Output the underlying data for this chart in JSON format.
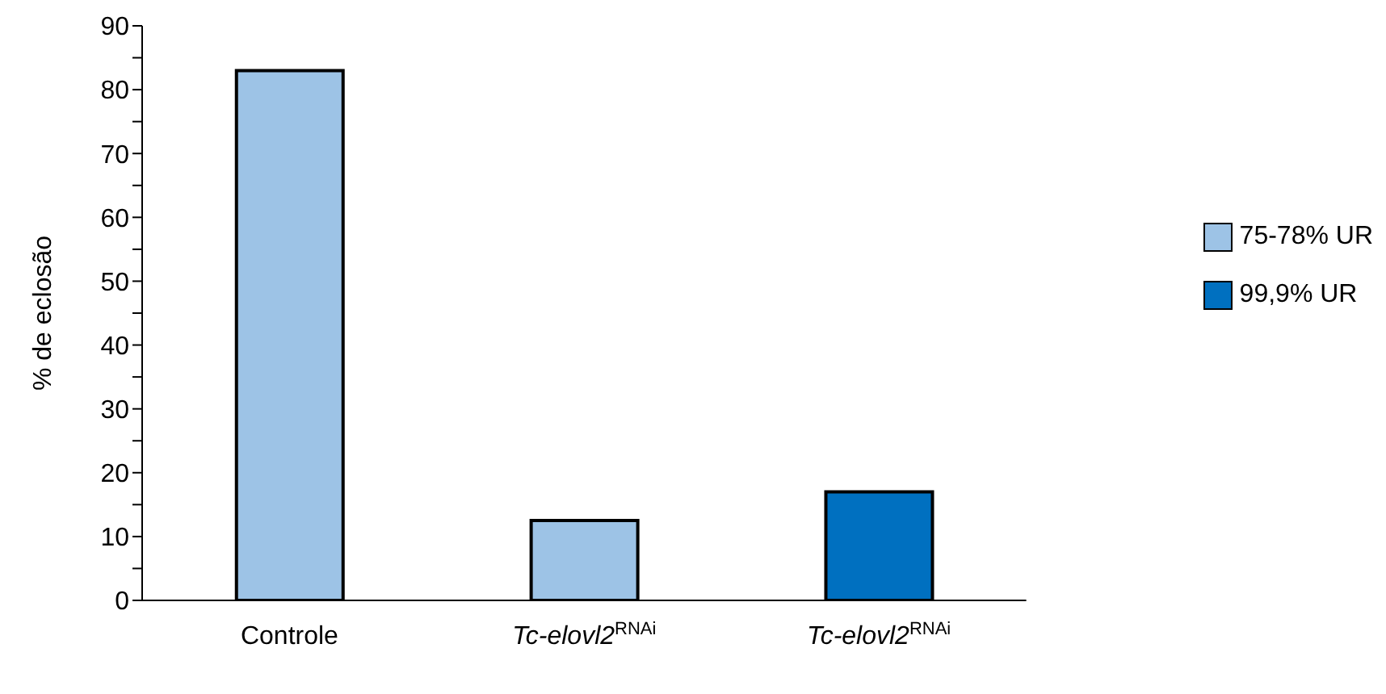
{
  "chart_data": {
    "type": "bar",
    "ylabel": "% de eclosão",
    "categories": [
      "Controle",
      "Tc-elovl2$^{RNAi}$",
      "Tc-elovl2$^{RNAi}$"
    ],
    "series": [
      {
        "name": "75-78% UR",
        "color": "#9dc3e6",
        "values": [
          83,
          12.5,
          null
        ]
      },
      {
        "name": "99,9% UR",
        "color": "#0070c0",
        "values": [
          null,
          null,
          17
        ]
      }
    ],
    "ylim": [
      0,
      90
    ],
    "yticks": [
      0,
      {
        "value": 5,
        "label": null
      },
      10,
      {
        "value": 15,
        "label": null
      },
      20,
      {
        "value": 25,
        "label": null
      },
      30,
      {
        "value": 35,
        "label": null
      },
      40,
      {
        "value": 45,
        "label": null
      },
      50,
      {
        "value": 55,
        "label": null
      },
      60,
      {
        "value": 65,
        "label": null
      },
      70,
      {
        "value": 75,
        "label": null
      },
      80,
      {
        "value": 85,
        "label": null
      },
      90
    ],
    "grid": false,
    "legend": "right"
  }
}
